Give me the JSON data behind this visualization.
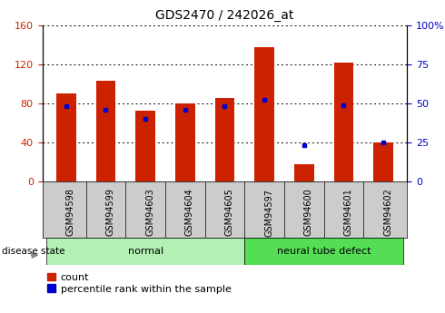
{
  "title": "GDS2470 / 242026_at",
  "samples": [
    "GSM94598",
    "GSM94599",
    "GSM94603",
    "GSM94604",
    "GSM94605",
    "GSM94597",
    "GSM94600",
    "GSM94601",
    "GSM94602"
  ],
  "count_values": [
    90,
    103,
    72,
    80,
    85,
    137,
    18,
    122,
    40
  ],
  "percentile_values": [
    48,
    46,
    40,
    46,
    48,
    52,
    23,
    49,
    25
  ],
  "groups": [
    {
      "label": "normal",
      "indices": [
        0,
        1,
        2,
        3,
        4
      ],
      "color": "#b3f0b3"
    },
    {
      "label": "neural tube defect",
      "indices": [
        5,
        6,
        7,
        8
      ],
      "color": "#55dd55"
    }
  ],
  "bar_color": "#cc2200",
  "percentile_color": "#0000cc",
  "left_ylim": [
    0,
    160
  ],
  "right_ylim": [
    0,
    100
  ],
  "left_yticks": [
    0,
    40,
    80,
    120,
    160
  ],
  "right_yticks": [
    0,
    25,
    50,
    75,
    100
  ],
  "left_tick_color": "#cc2200",
  "right_tick_color": "#0000cc",
  "bar_width": 0.5,
  "disease_state_label": "disease state",
  "legend_count_label": "count",
  "legend_percentile_label": "percentile rank within the sample",
  "tick_area_color": "#cccccc",
  "normal_group_color": "#b3f0b3",
  "ntd_group_color": "#55dd55"
}
